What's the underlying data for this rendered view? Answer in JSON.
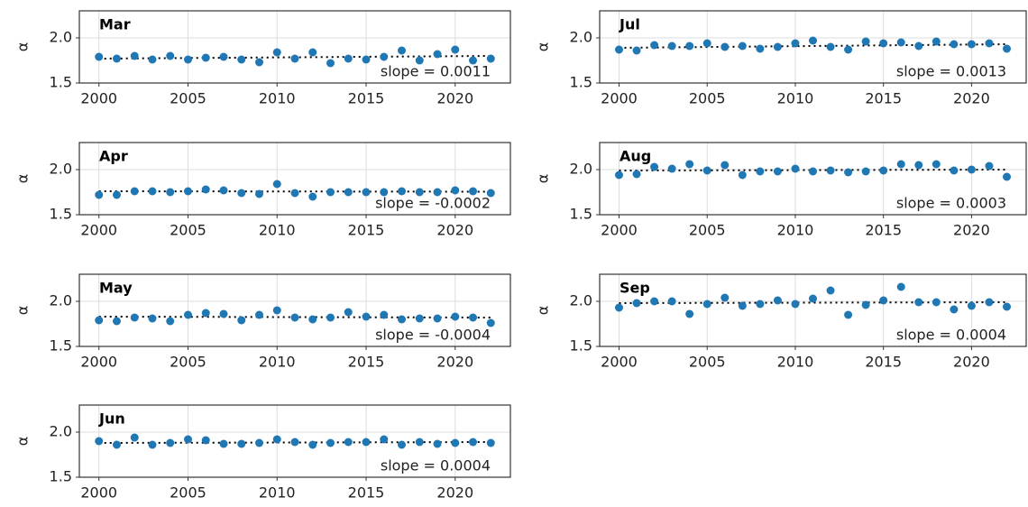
{
  "chart_data": [
    {
      "type": "scatter",
      "title": "Mar",
      "ylabel": "α",
      "color": "#1f77b4",
      "x": [
        2000,
        2001,
        2002,
        2003,
        2004,
        2005,
        2006,
        2007,
        2008,
        2009,
        2010,
        2011,
        2012,
        2013,
        2014,
        2015,
        2016,
        2017,
        2018,
        2019,
        2020,
        2021,
        2022
      ],
      "values": [
        1.79,
        1.77,
        1.8,
        1.76,
        1.8,
        1.76,
        1.78,
        1.79,
        1.76,
        1.73,
        1.84,
        1.77,
        1.84,
        1.72,
        1.77,
        1.76,
        1.79,
        1.86,
        1.75,
        1.82,
        1.87,
        1.75,
        1.77
      ],
      "trend": {
        "x": [
          2000,
          2022
        ],
        "y": [
          1.77,
          1.8
        ]
      },
      "annotation": "slope = 0.0011",
      "xlim": [
        1998.9,
        2023.1
      ],
      "xticks": [
        2000,
        2005,
        2010,
        2015,
        2020
      ],
      "ylim": [
        1.5,
        2.3
      ],
      "yticks": [
        1.5,
        {
          "value": 2,
          "label": "2.0"
        }
      ],
      "grid": true
    },
    {
      "type": "scatter",
      "title": "Jul",
      "ylabel": "α",
      "color": "#1f77b4",
      "x": [
        2000,
        2001,
        2002,
        2003,
        2004,
        2005,
        2006,
        2007,
        2008,
        2009,
        2010,
        2011,
        2012,
        2013,
        2014,
        2015,
        2016,
        2017,
        2018,
        2019,
        2020,
        2021,
        2022
      ],
      "values": [
        1.87,
        1.86,
        1.92,
        1.91,
        1.91,
        1.94,
        1.9,
        1.91,
        1.88,
        1.9,
        1.94,
        1.97,
        1.9,
        1.87,
        1.96,
        1.94,
        1.95,
        1.91,
        1.96,
        1.93,
        1.93,
        1.94,
        1.88
      ],
      "trend": {
        "x": [
          2000,
          2022
        ],
        "y": [
          1.89,
          1.93
        ]
      },
      "annotation": "slope = 0.0013",
      "xlim": [
        1998.9,
        2023.1
      ],
      "xticks": [
        2000,
        2005,
        2010,
        2015,
        2020
      ],
      "ylim": [
        1.5,
        2.3
      ],
      "yticks": [
        1.5,
        {
          "value": 2,
          "label": "2.0"
        }
      ],
      "grid": true
    },
    {
      "type": "scatter",
      "title": "Apr",
      "ylabel": "α",
      "color": "#1f77b4",
      "x": [
        2000,
        2001,
        2002,
        2003,
        2004,
        2005,
        2006,
        2007,
        2008,
        2009,
        2010,
        2011,
        2012,
        2013,
        2014,
        2015,
        2016,
        2017,
        2018,
        2019,
        2020,
        2021,
        2022
      ],
      "values": [
        1.72,
        1.72,
        1.76,
        1.76,
        1.75,
        1.76,
        1.78,
        1.77,
        1.74,
        1.73,
        1.84,
        1.74,
        1.7,
        1.75,
        1.75,
        1.75,
        1.75,
        1.76,
        1.75,
        1.75,
        1.77,
        1.76,
        1.74
      ],
      "trend": {
        "x": [
          2000,
          2022
        ],
        "y": [
          1.76,
          1.755
        ]
      },
      "annotation": "slope = -0.0002",
      "xlim": [
        1998.9,
        2023.1
      ],
      "xticks": [
        2000,
        2005,
        2010,
        2015,
        2020
      ],
      "ylim": [
        1.5,
        2.3
      ],
      "yticks": [
        1.5,
        {
          "value": 2,
          "label": "2.0"
        }
      ],
      "grid": true
    },
    {
      "type": "scatter",
      "title": "Aug",
      "ylabel": "α",
      "color": "#1f77b4",
      "x": [
        2000,
        2001,
        2002,
        2003,
        2004,
        2005,
        2006,
        2007,
        2008,
        2009,
        2010,
        2011,
        2012,
        2013,
        2014,
        2015,
        2016,
        2017,
        2018,
        2019,
        2020,
        2021,
        2022
      ],
      "values": [
        1.94,
        1.95,
        2.03,
        2.01,
        2.06,
        1.99,
        2.05,
        1.94,
        1.98,
        1.98,
        2.01,
        1.98,
        1.99,
        1.97,
        1.98,
        1.99,
        2.06,
        2.05,
        2.06,
        1.99,
        2.0,
        2.04,
        1.92
      ],
      "trend": {
        "x": [
          2000,
          2022
        ],
        "y": [
          1.99,
          2.0
        ]
      },
      "annotation": "slope = 0.0003",
      "xlim": [
        1998.9,
        2023.1
      ],
      "xticks": [
        2000,
        2005,
        2010,
        2015,
        2020
      ],
      "ylim": [
        1.5,
        2.3
      ],
      "yticks": [
        1.5,
        {
          "value": 2,
          "label": "2.0"
        }
      ],
      "grid": true
    },
    {
      "type": "scatter",
      "title": "May",
      "ylabel": "α",
      "color": "#1f77b4",
      "x": [
        2000,
        2001,
        2002,
        2003,
        2004,
        2005,
        2006,
        2007,
        2008,
        2009,
        2010,
        2011,
        2012,
        2013,
        2014,
        2015,
        2016,
        2017,
        2018,
        2019,
        2020,
        2021,
        2022
      ],
      "values": [
        1.79,
        1.78,
        1.82,
        1.81,
        1.78,
        1.85,
        1.87,
        1.86,
        1.79,
        1.85,
        1.9,
        1.82,
        1.8,
        1.82,
        1.88,
        1.83,
        1.85,
        1.8,
        1.81,
        1.81,
        1.83,
        1.82,
        1.76
      ],
      "trend": {
        "x": [
          2000,
          2022
        ],
        "y": [
          1.83,
          1.82
        ]
      },
      "annotation": "slope = -0.0004",
      "xlim": [
        1998.9,
        2023.1
      ],
      "xticks": [
        2000,
        2005,
        2010,
        2015,
        2020
      ],
      "ylim": [
        1.5,
        2.3
      ],
      "yticks": [
        1.5,
        {
          "value": 2,
          "label": "2.0"
        }
      ],
      "grid": true
    },
    {
      "type": "scatter",
      "title": "Sep",
      "ylabel": "α",
      "color": "#1f77b4",
      "x": [
        2000,
        2001,
        2002,
        2003,
        2004,
        2005,
        2006,
        2007,
        2008,
        2009,
        2010,
        2011,
        2012,
        2013,
        2014,
        2015,
        2016,
        2017,
        2018,
        2019,
        2020,
        2021,
        2022
      ],
      "values": [
        1.93,
        1.98,
        2.0,
        2.0,
        1.86,
        1.97,
        2.04,
        1.95,
        1.97,
        2.01,
        1.97,
        2.03,
        2.12,
        1.85,
        1.96,
        2.01,
        2.16,
        1.99,
        1.99,
        1.91,
        1.95,
        1.99,
        1.94
      ],
      "trend": {
        "x": [
          2000,
          2022
        ],
        "y": [
          1.98,
          1.99
        ]
      },
      "annotation": "slope = 0.0004",
      "xlim": [
        1998.9,
        2023.1
      ],
      "xticks": [
        2000,
        2005,
        2010,
        2015,
        2020
      ],
      "ylim": [
        1.5,
        2.3
      ],
      "yticks": [
        1.5,
        {
          "value": 2,
          "label": "2.0"
        }
      ],
      "grid": true
    },
    {
      "type": "scatter",
      "title": "Jun",
      "ylabel": "α",
      "color": "#1f77b4",
      "x": [
        2000,
        2001,
        2002,
        2003,
        2004,
        2005,
        2006,
        2007,
        2008,
        2009,
        2010,
        2011,
        2012,
        2013,
        2014,
        2015,
        2016,
        2017,
        2018,
        2019,
        2020,
        2021,
        2022
      ],
      "values": [
        1.9,
        1.86,
        1.94,
        1.86,
        1.88,
        1.92,
        1.91,
        1.87,
        1.87,
        1.88,
        1.92,
        1.89,
        1.86,
        1.88,
        1.89,
        1.89,
        1.92,
        1.86,
        1.89,
        1.87,
        1.88,
        1.89,
        1.88
      ],
      "trend": {
        "x": [
          2000,
          2022
        ],
        "y": [
          1.88,
          1.89
        ]
      },
      "annotation": "slope = 0.0004",
      "xlim": [
        1998.9,
        2023.1
      ],
      "xticks": [
        2000,
        2005,
        2010,
        2015,
        2020
      ],
      "ylim": [
        1.5,
        2.3
      ],
      "yticks": [
        1.5,
        {
          "value": 2,
          "label": "2.0"
        }
      ],
      "grid": true
    }
  ]
}
